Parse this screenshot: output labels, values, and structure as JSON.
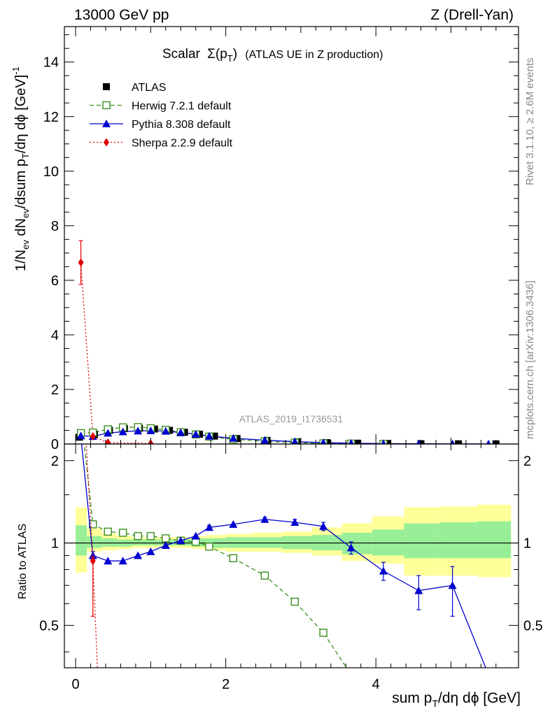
{
  "header": {
    "left": "13000 GeV pp",
    "right": "Z (Drell-Yan)"
  },
  "side_labels": {
    "rivet": "Rivet 3.1.10, ≥ 2.6M events",
    "mcplots": "mcplots.cern.ch [arXiv:1306.3436]"
  },
  "analysis_id": "ATLAS_2019_I1736531",
  "chart_data": {
    "type": "line",
    "title_main": "Scalar",
    "title_sym": "Σ(p",
    "title_sub": "T",
    "title_close": ")",
    "title_rest": "(ATLAS UE in Z production)",
    "xlabel": {
      "pre": "sum p",
      "sub": "T",
      "post": "/dη dϕ [GeV]"
    },
    "ylabel": {
      "a": "1/N",
      "a_sub": "ev",
      "b": " dN",
      "b_sub": "ev",
      "c": "/dsum p",
      "c_sub": "T",
      "d": "/dη dϕ  [GeV]",
      "d_sup": "-1"
    },
    "ratio_ylabel": "Ratio to ATLAS",
    "xlim": [
      -0.15,
      5.9
    ],
    "ylim_main": [
      0,
      15.3
    ],
    "ylim_ratio": [
      0.35,
      2.3
    ],
    "grid": false,
    "legend_position": "top-left",
    "x_ticks": [
      "0",
      "2",
      "4"
    ],
    "y_ticks_main": [
      "0",
      "2",
      "4",
      "6",
      "8",
      "10",
      "12",
      "14"
    ],
    "y_ticks_ratio": [
      "0.5",
      "1",
      "2"
    ],
    "series": [
      {
        "name": "ATLAS",
        "role": "data",
        "color": "#000000",
        "marker": "square",
        "x": [
          0.05,
          0.25,
          0.45,
          0.65,
          0.85,
          1.05,
          1.25,
          1.45,
          1.65,
          1.85,
          2.15,
          2.55,
          2.95,
          3.35,
          3.75,
          4.15,
          4.6,
          5.1,
          5.6
        ],
        "y": [
          0.25,
          0.36,
          0.5,
          0.57,
          0.58,
          0.55,
          0.5,
          0.43,
          0.36,
          0.29,
          0.2,
          0.13,
          0.08,
          0.05,
          0.03,
          0.02,
          0.012,
          0.008,
          0.005
        ],
        "band_low_yellow": [
          0.78,
          0.93,
          0.94,
          0.95,
          0.96,
          0.96,
          0.96,
          0.96,
          0.95,
          0.94,
          0.93,
          0.93,
          0.92,
          0.9,
          0.86,
          0.84,
          0.76,
          0.76,
          0.75
        ],
        "band_high_yellow": [
          1.35,
          1.13,
          1.08,
          1.06,
          1.05,
          1.05,
          1.05,
          1.05,
          1.06,
          1.07,
          1.08,
          1.09,
          1.1,
          1.14,
          1.18,
          1.25,
          1.35,
          1.36,
          1.38
        ],
        "band_low_green": [
          0.9,
          0.96,
          0.97,
          0.97,
          0.98,
          0.98,
          0.98,
          0.98,
          0.97,
          0.96,
          0.96,
          0.96,
          0.95,
          0.94,
          0.91,
          0.9,
          0.88,
          0.88,
          0.88
        ],
        "band_high_green": [
          1.16,
          1.06,
          1.04,
          1.03,
          1.03,
          1.03,
          1.03,
          1.03,
          1.04,
          1.04,
          1.05,
          1.05,
          1.06,
          1.07,
          1.09,
          1.12,
          1.18,
          1.19,
          1.2
        ]
      },
      {
        "name": "Herwig 7.2.1 default",
        "role": "mc",
        "color": "#3a8f1e",
        "marker": "open-square",
        "dash": "6,4",
        "x": [
          0.07,
          0.23,
          0.43,
          0.63,
          0.83,
          1.0,
          1.2,
          1.4,
          1.6,
          1.78,
          2.1,
          2.52,
          2.92,
          3.3,
          3.67,
          4.1
        ],
        "y": [
          0.4,
          0.42,
          0.54,
          0.61,
          0.62,
          0.58,
          0.52,
          0.43,
          0.35,
          0.27,
          0.17,
          0.1,
          0.05,
          0.025,
          0.014,
          0.007
        ],
        "ratio_x": [
          0.07,
          0.23,
          0.43,
          0.63,
          0.83,
          1.0,
          1.2,
          1.4,
          1.6,
          1.78,
          2.1,
          2.52,
          2.92,
          3.3,
          3.67
        ],
        "ratio": [
          3.0,
          1.17,
          1.1,
          1.09,
          1.06,
          1.06,
          1.04,
          1.02,
          1.01,
          0.97,
          0.88,
          0.76,
          0.61,
          0.47,
          0.33
        ]
      },
      {
        "name": "Pythia 8.308 default",
        "role": "mc",
        "color": "#0000d0",
        "marker": "triangle",
        "dash": "",
        "x": [
          0.07,
          0.23,
          0.43,
          0.63,
          0.83,
          1.0,
          1.2,
          1.4,
          1.6,
          1.78,
          2.1,
          2.52,
          2.92,
          3.3,
          3.67,
          4.1,
          4.57,
          5.02,
          5.5
        ],
        "y": [
          0.3,
          0.28,
          0.4,
          0.45,
          0.48,
          0.49,
          0.47,
          0.42,
          0.36,
          0.29,
          0.21,
          0.14,
          0.085,
          0.05,
          0.03,
          0.016,
          0.008,
          0.005,
          0.002
        ],
        "ratio_x": [
          0.07,
          0.23,
          0.43,
          0.63,
          0.83,
          1.0,
          1.2,
          1.4,
          1.6,
          1.78,
          2.1,
          2.52,
          2.92,
          3.3,
          3.67,
          4.1,
          4.57,
          5.02,
          5.5
        ],
        "ratio": [
          2.45,
          0.9,
          0.86,
          0.86,
          0.9,
          0.93,
          0.98,
          1.02,
          1.06,
          1.14,
          1.17,
          1.22,
          1.19,
          1.15,
          0.96,
          0.79,
          0.67,
          0.7,
          0.33
        ],
        "ratio_err_low": [
          0,
          0.03,
          0,
          0,
          0,
          0,
          0,
          0,
          0,
          0.02,
          0,
          0.02,
          0.03,
          0.04,
          0.05,
          0.06,
          0.1,
          0.16,
          0
        ],
        "ratio_err_high": [
          0,
          0.03,
          0,
          0,
          0,
          0,
          0,
          0,
          0,
          0.02,
          0,
          0.02,
          0.03,
          0.04,
          0.05,
          0.06,
          0.09,
          0.12,
          0
        ]
      },
      {
        "name": "Sherpa 2.2.9 default",
        "role": "mc",
        "color": "#e00000",
        "marker": "diamond",
        "dash": "2,3",
        "x": [
          0.07,
          0.23,
          0.43,
          1.0
        ],
        "y": [
          6.65,
          0.28,
          0.05,
          0.02
        ],
        "y_err": [
          0.8,
          0.04,
          0.01,
          0.005
        ],
        "ratio_x": [
          0.07,
          0.23,
          0.3
        ],
        "ratio": [
          5.0,
          0.86,
          0.3
        ],
        "ratio_err_low": [
          0,
          0.32,
          0
        ],
        "ratio_err_high": [
          0,
          0.03,
          0
        ]
      }
    ]
  }
}
